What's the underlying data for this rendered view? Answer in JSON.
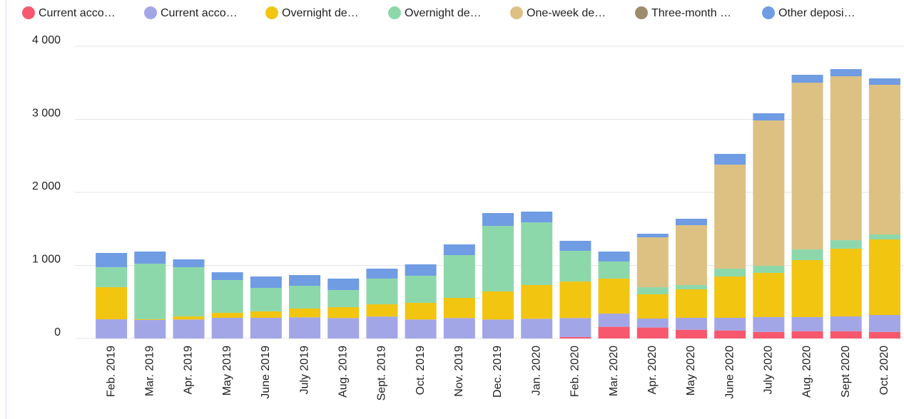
{
  "chart_data": {
    "type": "bar",
    "stacked": true,
    "categories": [
      "Feb. 2019",
      "Mar. 2019",
      "Apr. 2019",
      "May 2019",
      "June 2019",
      "July 2019",
      "Aug. 2019",
      "Sept. 2019",
      "Oct. 2019",
      "Nov. 2019",
      "Dec. 2019",
      "Jan. 2020",
      "Feb. 2020",
      "Mar. 2020",
      "Apr. 2020",
      "May 2020",
      "June 2020",
      "July 2020",
      "Aug. 2020",
      "Sept 2020",
      "Oct. 2020"
    ],
    "series": [
      {
        "name": "Current acco…",
        "color": "#f7586e",
        "values": [
          0,
          0,
          0,
          0,
          0,
          0,
          0,
          0,
          0,
          0,
          0,
          0,
          20,
          160,
          150,
          120,
          110,
          90,
          100,
          100,
          90
        ]
      },
      {
        "name": "Current acco…",
        "color": "#a3a6e6",
        "values": [
          263,
          254,
          260,
          283,
          283,
          290,
          280,
          300,
          260,
          280,
          260,
          270,
          260,
          181,
          123,
          163,
          173,
          203,
          193,
          202,
          232
        ]
      },
      {
        "name": "Overnight de…",
        "color": "#f2c511",
        "values": [
          440,
          10,
          42,
          68,
          88,
          120,
          149,
          168,
          228,
          276,
          384,
          462,
          500,
          479,
          332,
          390,
          566,
          605,
          780,
          927,
          1034
        ]
      },
      {
        "name": "Overnight de…",
        "color": "#8dd8ab",
        "values": [
          274,
          760,
          674,
          449,
          322,
          312,
          234,
          352,
          371,
          585,
          897,
          858,
          420,
          234,
          97,
          59,
          107,
          97,
          147,
          117,
          68
        ]
      },
      {
        "name": "One-week de…",
        "color": "#dcc183",
        "values": [
          0,
          0,
          0,
          0,
          0,
          0,
          0,
          0,
          0,
          0,
          0,
          0,
          0,
          0,
          683,
          819,
          1424,
          1990,
          2282,
          2244,
          2049
        ]
      },
      {
        "name": "Three-month …",
        "color": "#9c8c6e",
        "values": [
          0,
          0,
          0,
          0,
          0,
          0,
          0,
          0,
          0,
          0,
          0,
          0,
          0,
          0,
          0,
          0,
          0,
          0,
          0,
          0,
          0
        ]
      },
      {
        "name": "Other deposi…",
        "color": "#6f9ce3",
        "values": [
          194,
          166,
          107,
          107,
          156,
          146,
          157,
          136,
          156,
          147,
          176,
          147,
          137,
          136,
          49,
          88,
          147,
          98,
          108,
          98,
          88
        ]
      }
    ],
    "ylim": [
      0,
      4000
    ],
    "yticks": [
      0,
      {
        "value": 1000,
        "label": "1 000"
      },
      {
        "value": 2000,
        "label": "2 000"
      },
      {
        "value": 3000,
        "label": "3 000"
      },
      {
        "value": 4000,
        "label": "4 000"
      }
    ],
    "grid": true
  }
}
